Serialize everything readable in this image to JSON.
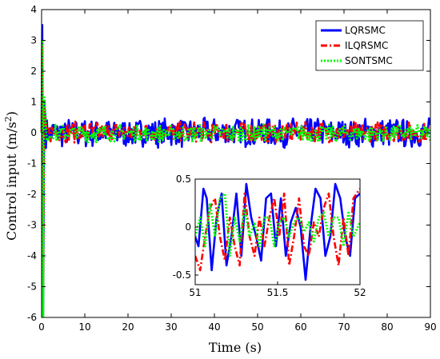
{
  "chart_data": [
    {
      "type": "line",
      "title": "",
      "xlabel": "Time (s)",
      "ylabel_main": "Control input (m/s",
      "ylabel_exp": "2",
      "ylabel_close": ")",
      "xlim": [
        0,
        90
      ],
      "ylim": [
        -6,
        4
      ],
      "xticks": [
        "0",
        "10",
        "20",
        "30",
        "40",
        "50",
        "60",
        "70",
        "80",
        "90"
      ],
      "yticks": [
        "4",
        "3",
        "2",
        "1",
        "0",
        "-1",
        "-2",
        "-3",
        "-4",
        "-5",
        "-6"
      ],
      "grid": false,
      "legend_position": "top-right",
      "series": [
        {
          "name": "LQRSMC",
          "color": "#0000ff",
          "style": "solid",
          "x": [
            0,
            0.15,
            0.35,
            0.6,
            1,
            2,
            5,
            10,
            20,
            30,
            40,
            50,
            60,
            70,
            80,
            90
          ],
          "y": [
            0,
            3.5,
            -5.9,
            1.0,
            0.3,
            0.1,
            -0.2,
            0.3,
            -0.4,
            0.3,
            -0.5,
            0.6,
            -0.3,
            0.4,
            -0.4,
            0.1
          ],
          "band": 0.5
        },
        {
          "name": "ILQRSMC",
          "color": "#ff0000",
          "style": "dashdot",
          "x": [
            0,
            0.15,
            0.35,
            0.6,
            1,
            2,
            5,
            10,
            20,
            30,
            40,
            50,
            60,
            70,
            80,
            90
          ],
          "y": [
            0,
            2.8,
            -5.0,
            0.8,
            0.2,
            0.1,
            -0.1,
            0.2,
            -0.3,
            0.2,
            -0.3,
            0.3,
            -0.2,
            0.3,
            -0.3,
            0.0
          ],
          "band": 0.35
        },
        {
          "name": "SONTSMC",
          "color": "#00ff00",
          "style": "dotted",
          "x": [
            0,
            0.15,
            0.35,
            0.6,
            1,
            2,
            5,
            10,
            20,
            30,
            40,
            50,
            60,
            70,
            80,
            90
          ],
          "y": [
            0,
            3.0,
            -6.0,
            1.2,
            0.3,
            0.1,
            -0.1,
            0.2,
            -0.2,
            0.2,
            -0.2,
            0.2,
            -0.2,
            0.2,
            -0.2,
            0.0
          ],
          "band": 0.3
        }
      ]
    },
    {
      "type": "line",
      "title": "",
      "xlim": [
        51,
        52
      ],
      "ylim": [
        -0.6,
        0.5
      ],
      "xticks": [
        "51",
        "51.5",
        "52"
      ],
      "yticks": [
        "0.5",
        "0",
        "-0.5"
      ],
      "series": [
        {
          "name": "LQRSMC",
          "color": "#0000ff",
          "style": "solid",
          "x": [
            51.0,
            51.02,
            51.05,
            51.07,
            51.1,
            51.13,
            51.16,
            51.19,
            51.22,
            51.25,
            51.28,
            51.31,
            51.34,
            51.37,
            51.4,
            51.43,
            51.46,
            51.49,
            51.52,
            51.55,
            51.58,
            51.61,
            51.64,
            51.67,
            51.7,
            51.73,
            51.76,
            51.79,
            51.82,
            51.85,
            51.88,
            51.91,
            51.94,
            51.97,
            52.0
          ],
          "y": [
            -0.1,
            -0.2,
            0.4,
            0.3,
            -0.45,
            0.1,
            0.35,
            -0.4,
            -0.1,
            0.35,
            -0.3,
            0.45,
            0.1,
            -0.1,
            -0.35,
            0.3,
            0.35,
            -0.2,
            0.3,
            -0.3,
            0.05,
            0.2,
            0.0,
            -0.55,
            0.0,
            0.4,
            0.3,
            -0.3,
            -0.1,
            0.45,
            0.3,
            -0.1,
            -0.3,
            0.3,
            0.35
          ]
        },
        {
          "name": "ILQRSMC",
          "color": "#ff0000",
          "style": "dashdot",
          "x": [
            51.0,
            51.03,
            51.06,
            51.09,
            51.12,
            51.15,
            51.18,
            51.21,
            51.24,
            51.27,
            51.3,
            51.33,
            51.36,
            51.39,
            51.42,
            51.45,
            51.48,
            51.51,
            51.54,
            51.57,
            51.6,
            51.63,
            51.66,
            51.69,
            51.72,
            51.75,
            51.78,
            51.81,
            51.84,
            51.87,
            51.9,
            51.93,
            51.96,
            52.0
          ],
          "y": [
            -0.3,
            -0.45,
            -0.1,
            0.2,
            0.3,
            -0.1,
            -0.35,
            0.1,
            -0.2,
            -0.4,
            0.35,
            -0.1,
            -0.3,
            0.1,
            -0.2,
            0.1,
            0.3,
            -0.1,
            0.35,
            -0.4,
            -0.1,
            0.3,
            -0.2,
            -0.3,
            0.05,
            -0.1,
            0.2,
            0.35,
            -0.1,
            -0.4,
            0.1,
            -0.3,
            0.3,
            0.4
          ]
        },
        {
          "name": "SONTSMC",
          "color": "#00ff00",
          "style": "dotted",
          "x": [
            51.0,
            51.03,
            51.06,
            51.09,
            51.12,
            51.15,
            51.18,
            51.21,
            51.24,
            51.27,
            51.3,
            51.33,
            51.36,
            51.39,
            51.42,
            51.45,
            51.48,
            51.51,
            51.54,
            51.57,
            51.6,
            51.63,
            51.66,
            51.69,
            51.72,
            51.75,
            51.78,
            51.81,
            51.84,
            51.87,
            51.9,
            51.93,
            51.96,
            52.0
          ],
          "y": [
            -0.1,
            0.1,
            -0.2,
            0.25,
            -0.1,
            0.3,
            0.35,
            -0.3,
            0.1,
            -0.15,
            0.2,
            -0.1,
            0.05,
            -0.2,
            0.1,
            0.1,
            -0.2,
            0.05,
            0.1,
            -0.1,
            0.05,
            0.1,
            -0.05,
            0.05,
            -0.15,
            0.1,
            0.15,
            -0.1,
            0.1,
            0.1,
            -0.2,
            0.15,
            -0.1,
            0.05
          ]
        }
      ]
    }
  ]
}
